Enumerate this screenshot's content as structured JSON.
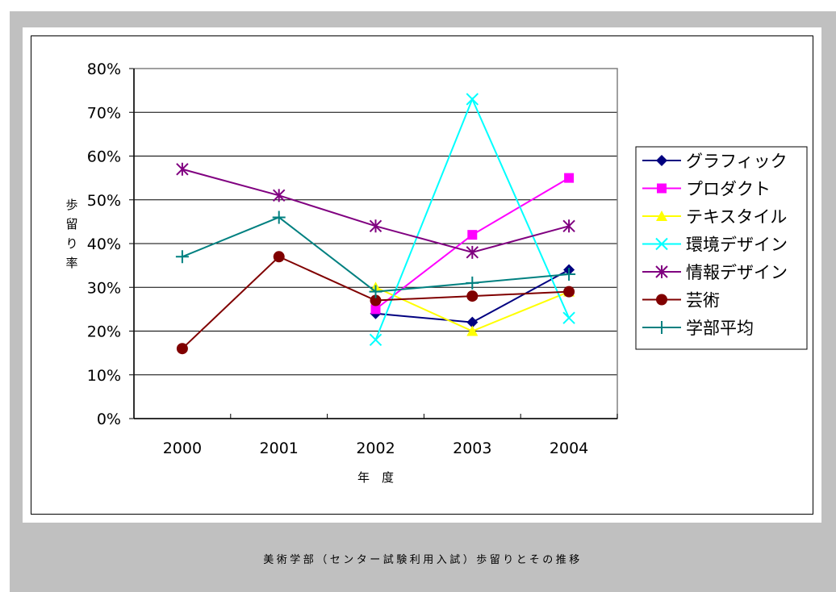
{
  "chart_data": {
    "type": "line",
    "categories": [
      "2000",
      "2001",
      "2002",
      "2003",
      "2004"
    ],
    "ylabel": "歩留り率",
    "xlabel": "年　度",
    "ylim": [
      0,
      0.8
    ],
    "yticks": [
      "0%",
      "10%",
      "20%",
      "30%",
      "40%",
      "50%",
      "60%",
      "70%",
      "80%"
    ],
    "grid": true,
    "legend_position": "right",
    "series": [
      {
        "name": "グラフィック",
        "color": "#000080",
        "marker": "diamond",
        "values": [
          null,
          null,
          0.24,
          0.22,
          0.34
        ]
      },
      {
        "name": "プロダクト",
        "color": "#ff00ff",
        "marker": "square",
        "values": [
          null,
          null,
          0.25,
          0.42,
          0.55
        ]
      },
      {
        "name": "テキスタイル",
        "color": "#ffff00",
        "marker": "triangle",
        "values": [
          null,
          null,
          0.3,
          0.2,
          0.29
        ]
      },
      {
        "name": "環境デザイン",
        "color": "#00ffff",
        "marker": "x",
        "values": [
          null,
          null,
          0.18,
          0.73,
          0.23
        ]
      },
      {
        "name": "情報デザイン",
        "color": "#800080",
        "marker": "asterisk",
        "values": [
          0.57,
          0.51,
          0.44,
          0.38,
          0.44
        ]
      },
      {
        "name": "芸術",
        "color": "#800000",
        "marker": "circle",
        "values": [
          0.16,
          0.37,
          0.27,
          0.28,
          0.29
        ]
      },
      {
        "name": "学部平均",
        "color": "#008080",
        "marker": "plus",
        "values": [
          0.37,
          0.46,
          0.29,
          0.31,
          0.33
        ]
      }
    ]
  },
  "caption": "美術学部（センター試験利用入試）歩留りとその推移"
}
